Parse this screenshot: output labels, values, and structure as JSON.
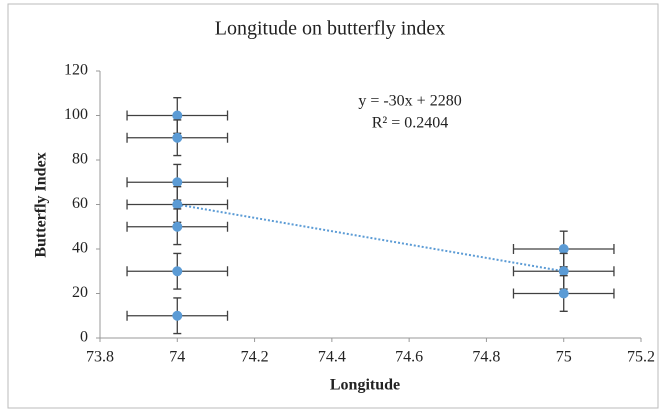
{
  "chart_data": {
    "type": "scatter",
    "title": "Longitude  on butterfly  index",
    "x_label": "Longitude",
    "y_label": "Butterfly  Index",
    "series": [
      {
        "color": "#5b9bd5",
        "x": [
          74,
          74,
          74,
          74,
          74,
          74,
          74,
          75,
          75,
          75
        ],
        "values": [
          100,
          90,
          70,
          60,
          50,
          30,
          10,
          40,
          30,
          20
        ]
      }
    ],
    "x_error": 0.13,
    "y_error": 8,
    "trendline": {
      "slope": -30,
      "intercept": 2280,
      "color": "#5b9bd5",
      "equation": "y = -30x + 2280",
      "r2": "R² = 0.2404"
    },
    "xlim": [
      73.8,
      75.2
    ],
    "xticks": [
      73.8,
      74,
      74.2,
      74.4,
      74.6,
      74.8,
      75,
      75.2
    ],
    "ylim": [
      0,
      120
    ],
    "yticks": [
      0,
      20,
      40,
      60,
      80,
      100,
      120
    ],
    "grid": false
  }
}
